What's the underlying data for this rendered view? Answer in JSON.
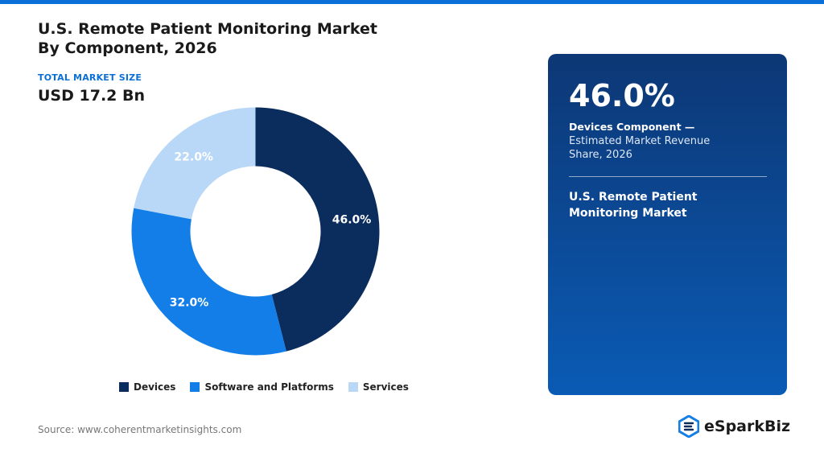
{
  "colors": {
    "accent": "#0a6fd6",
    "devices": "#0b2d5e",
    "software": "#137ee8",
    "services": "#b9d8f7",
    "panel_top": "#0d3775",
    "panel_bottom": "#0a5bb5"
  },
  "header": {
    "title_line1": "U.S. Remote Patient Monitoring Market",
    "title_line2": "By Component, 2026",
    "market_label": "TOTAL MARKET SIZE",
    "market_value": "USD 17.2 Bn"
  },
  "chart_data": {
    "type": "pie",
    "variant": "donut",
    "labels": [
      "Devices",
      "Software and Platforms",
      "Services"
    ],
    "values": [
      46.0,
      32.0,
      22.0
    ],
    "value_labels": [
      "46.0%",
      "32.0%",
      "22.0%"
    ],
    "legend_position": "bottom"
  },
  "panel": {
    "big_value": "46.0%",
    "strong_label": "Devices Component —",
    "desc": "Estimated Market Revenue Share, 2026",
    "subtitle": "U.S. Remote Patient Monitoring Market"
  },
  "footer": {
    "source": "Source: www.coherentmarketinsights.com",
    "brand": "eSparkBiz",
    "brand_icon": "espark-logo-icon"
  }
}
